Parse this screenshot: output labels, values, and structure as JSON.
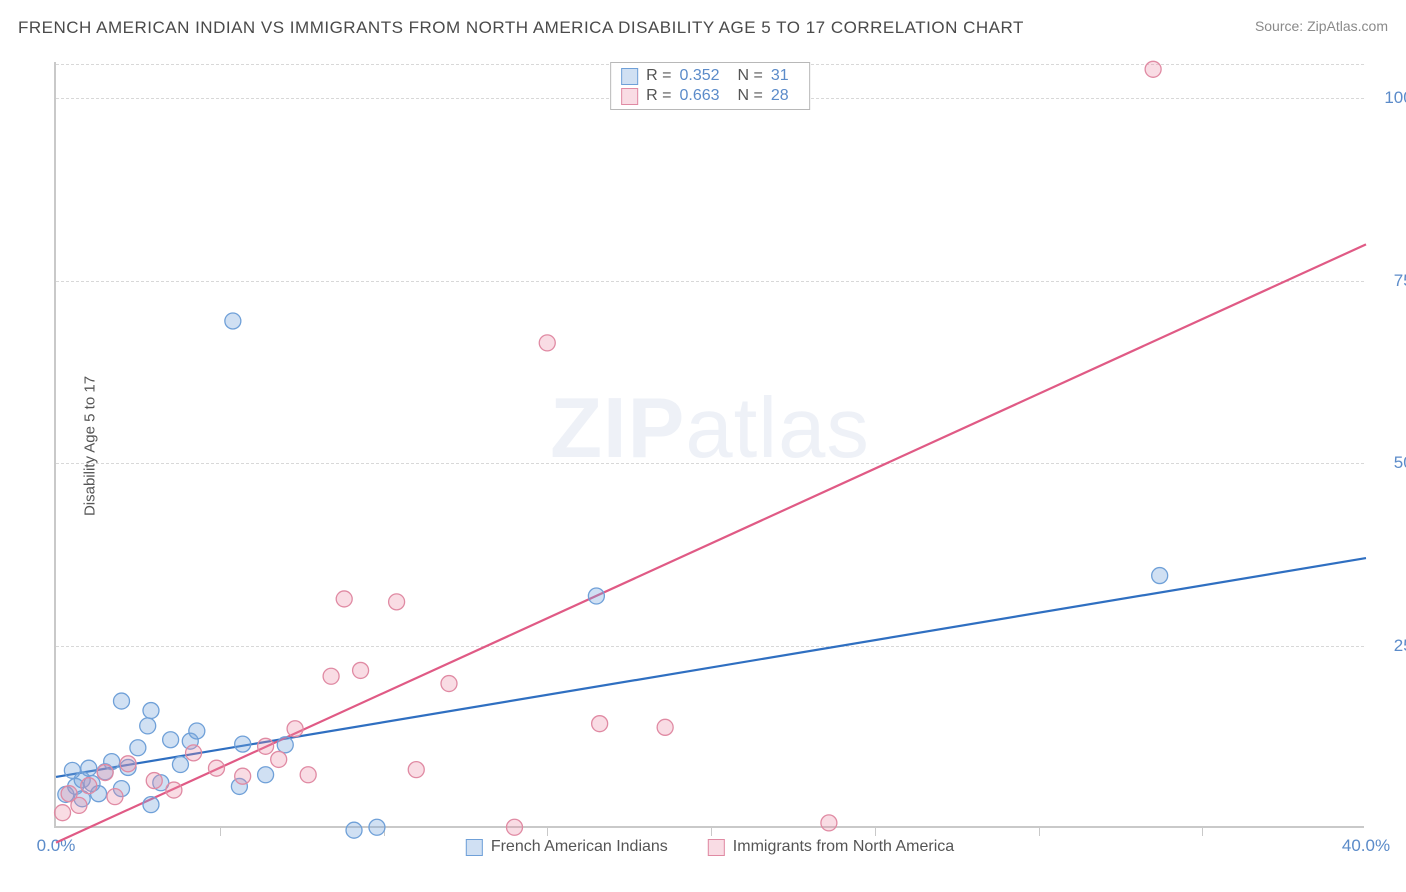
{
  "header": {
    "title": "FRENCH AMERICAN INDIAN VS IMMIGRANTS FROM NORTH AMERICA DISABILITY AGE 5 TO 17 CORRELATION CHART",
    "source": "Source: ZipAtlas.com"
  },
  "watermark": {
    "zip": "ZIP",
    "atlas": "atlas"
  },
  "chart": {
    "type": "scatter-with-regression",
    "ylabel": "Disability Age 5 to 17",
    "xlim": [
      0,
      40
    ],
    "ylim": [
      0,
      105
    ],
    "xtick_step": 5,
    "ytick_step": 25,
    "x_labeled_ticks": [
      0,
      40
    ],
    "y_labeled_ticks": [
      25,
      50,
      75,
      100
    ],
    "xtick_format_suffix": "%",
    "ytick_format_suffix": "%",
    "grid_color": "#d8d8d8",
    "axis_color": "#c9c9c9",
    "background_color": "#ffffff",
    "text_color": "#555555",
    "value_color": "#5b8bc9",
    "marker_radius": 8,
    "marker_stroke_width": 1.3,
    "line_width": 2.2,
    "series": [
      {
        "key": "blue",
        "label": "French American Indians",
        "R": "0.352",
        "N": "31",
        "color_fill": "rgba(120,165,220,0.35)",
        "color_stroke": "#6fa0d8",
        "line_color": "#2f6fc1",
        "regression": {
          "x1": 0,
          "y1": 7,
          "x2": 40,
          "y2": 37
        },
        "points": [
          [
            0.3,
            4.6
          ],
          [
            0.5,
            7.9
          ],
          [
            0.6,
            5.7
          ],
          [
            0.8,
            4.0
          ],
          [
            0.8,
            6.6
          ],
          [
            1.0,
            8.2
          ],
          [
            1.1,
            6.1
          ],
          [
            1.3,
            4.7
          ],
          [
            1.5,
            7.7
          ],
          [
            1.7,
            9.1
          ],
          [
            2.0,
            5.4
          ],
          [
            2.0,
            17.4
          ],
          [
            2.2,
            8.3
          ],
          [
            2.5,
            11.0
          ],
          [
            2.8,
            14.0
          ],
          [
            2.9,
            3.2
          ],
          [
            2.9,
            16.1
          ],
          [
            3.2,
            6.2
          ],
          [
            3.5,
            12.1
          ],
          [
            3.8,
            8.7
          ],
          [
            4.1,
            11.9
          ],
          [
            4.3,
            13.3
          ],
          [
            5.4,
            69.5
          ],
          [
            5.6,
            5.7
          ],
          [
            5.7,
            11.5
          ],
          [
            6.4,
            7.3
          ],
          [
            7.0,
            11.4
          ],
          [
            9.1,
            -0.3
          ],
          [
            9.8,
            0.1
          ],
          [
            16.5,
            31.8
          ],
          [
            33.7,
            34.6
          ]
        ]
      },
      {
        "key": "pink",
        "label": "Immigrants from North America",
        "R": "0.663",
        "N": "28",
        "color_fill": "rgba(235,140,165,0.30)",
        "color_stroke": "#e08aa3",
        "line_color": "#e05a85",
        "regression": {
          "x1": 0,
          "y1": -2,
          "x2": 40,
          "y2": 80
        },
        "points": [
          [
            0.2,
            2.1
          ],
          [
            0.4,
            4.7
          ],
          [
            0.7,
            3.1
          ],
          [
            1.0,
            5.8
          ],
          [
            1.5,
            7.6
          ],
          [
            1.8,
            4.3
          ],
          [
            2.2,
            8.8
          ],
          [
            3.0,
            6.5
          ],
          [
            3.6,
            5.2
          ],
          [
            4.2,
            10.3
          ],
          [
            4.9,
            8.2
          ],
          [
            5.7,
            7.1
          ],
          [
            6.4,
            11.2
          ],
          [
            6.8,
            9.4
          ],
          [
            7.3,
            13.6
          ],
          [
            7.7,
            7.3
          ],
          [
            8.4,
            20.8
          ],
          [
            8.8,
            31.4
          ],
          [
            9.3,
            21.6
          ],
          [
            10.4,
            31.0
          ],
          [
            11.0,
            8.0
          ],
          [
            12.0,
            19.8
          ],
          [
            14.0,
            0.1
          ],
          [
            15.0,
            66.5
          ],
          [
            16.6,
            14.3
          ],
          [
            18.6,
            13.8
          ],
          [
            23.6,
            0.7
          ],
          [
            33.5,
            104.0
          ]
        ]
      }
    ]
  },
  "legend_top": {
    "r_label": "R =",
    "n_label": "N ="
  }
}
